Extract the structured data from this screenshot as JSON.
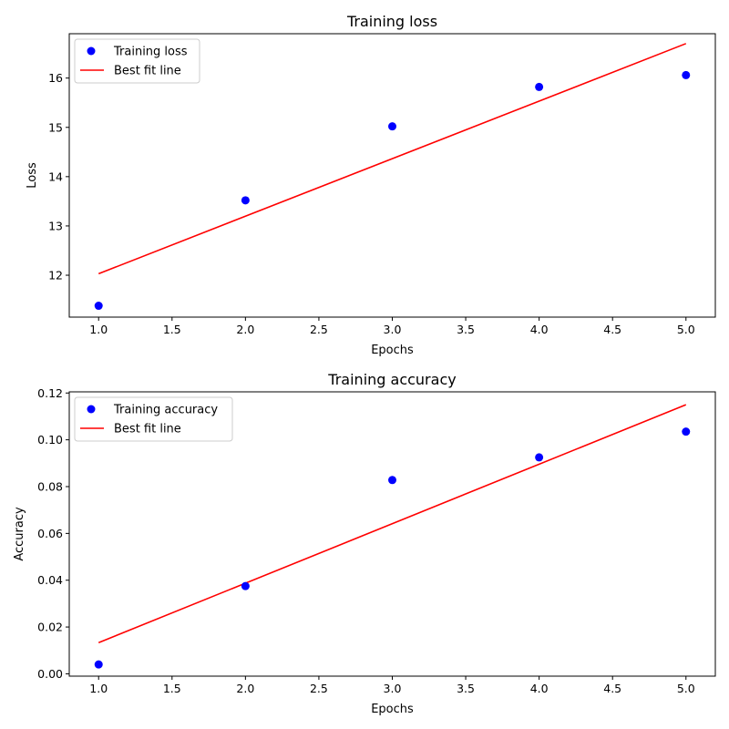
{
  "chart_data": [
    {
      "type": "scatter",
      "title": "Training loss",
      "xlabel": "Epochs",
      "ylabel": "Loss",
      "xlim": [
        0.8,
        5.2
      ],
      "ylim": [
        11.15,
        16.9
      ],
      "xticks": [
        1.0,
        1.5,
        2.0,
        2.5,
        3.0,
        3.5,
        4.0,
        4.5,
        5.0
      ],
      "xtick_labels": [
        "1.0",
        "1.5",
        "2.0",
        "2.5",
        "3.0",
        "3.5",
        "4.0",
        "4.5",
        "5.0"
      ],
      "yticks": [
        12,
        13,
        14,
        15,
        16
      ],
      "ytick_labels": [
        "12",
        "13",
        "14",
        "15",
        "16"
      ],
      "grid": false,
      "legend_position": "top-left",
      "series": [
        {
          "name": "Training loss",
          "kind": "points",
          "color": "#0000ff",
          "x": [
            1,
            2,
            3,
            4,
            5
          ],
          "y": [
            11.38,
            13.52,
            15.02,
            15.82,
            16.06
          ]
        },
        {
          "name": "Best fit line",
          "kind": "line",
          "color": "#ff0000",
          "x": [
            1,
            5
          ],
          "y": [
            12.03,
            16.7
          ]
        }
      ]
    },
    {
      "type": "scatter",
      "title": "Training accuracy",
      "xlabel": "Epochs",
      "ylabel": "Accuracy",
      "xlim": [
        0.8,
        5.2
      ],
      "ylim": [
        -0.001,
        0.1205
      ],
      "xticks": [
        1.0,
        1.5,
        2.0,
        2.5,
        3.0,
        3.5,
        4.0,
        4.5,
        5.0
      ],
      "xtick_labels": [
        "1.0",
        "1.5",
        "2.0",
        "2.5",
        "3.0",
        "3.5",
        "4.0",
        "4.5",
        "5.0"
      ],
      "yticks": [
        0.0,
        0.02,
        0.04,
        0.06,
        0.08,
        0.1,
        0.12
      ],
      "ytick_labels": [
        "0.00",
        "0.02",
        "0.04",
        "0.06",
        "0.08",
        "0.10",
        "0.12"
      ],
      "grid": false,
      "legend_position": "top-left",
      "series": [
        {
          "name": "Training accuracy",
          "kind": "points",
          "color": "#0000ff",
          "x": [
            1,
            2,
            3,
            4,
            5
          ],
          "y": [
            0.004,
            0.0375,
            0.0828,
            0.0925,
            0.1035
          ]
        },
        {
          "name": "Best fit line",
          "kind": "line",
          "color": "#ff0000",
          "x": [
            1,
            5
          ],
          "y": [
            0.0133,
            0.115
          ]
        }
      ]
    }
  ]
}
